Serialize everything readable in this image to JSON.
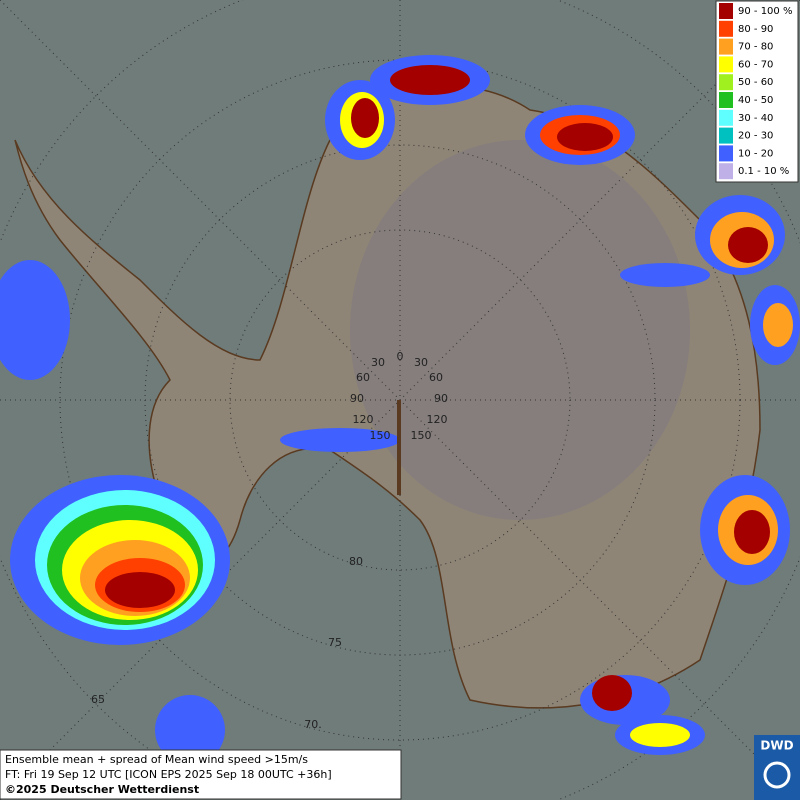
{
  "legend": {
    "items": [
      {
        "label": "90 - 100 %",
        "color": "#a50000"
      },
      {
        "label": "80 - 90",
        "color": "#ff4000"
      },
      {
        "label": "70 - 80",
        "color": "#ffa020"
      },
      {
        "label": "60 - 70",
        "color": "#ffff00"
      },
      {
        "label": "50 - 60",
        "color": "#a0f020"
      },
      {
        "label": "40 - 50",
        "color": "#20c020"
      },
      {
        "label": "30 - 40",
        "color": "#60ffff"
      },
      {
        "label": "20 - 30",
        "color": "#00c0c0"
      },
      {
        "label": "10 - 20",
        "color": "#4060ff"
      },
      {
        "label": "0.1 - 10 %",
        "color": "#c0b0e8"
      }
    ]
  },
  "graticule": {
    "labels": [
      "30",
      "0",
      "30",
      "60",
      "60",
      "90",
      "90",
      "120",
      "120",
      "150",
      "150",
      "80",
      "75",
      "70.",
      "65"
    ]
  },
  "caption": {
    "lines": [
      "Ensemble mean + spread of Mean wind speed >15m/s",
      "FT: Fri 19 Sep 12 UTC [ICON EPS 2025 Sep 18 00UTC +36h]",
      "©2025 Deutscher Wetterdienst"
    ]
  },
  "logo": {
    "text": "DWD"
  }
}
